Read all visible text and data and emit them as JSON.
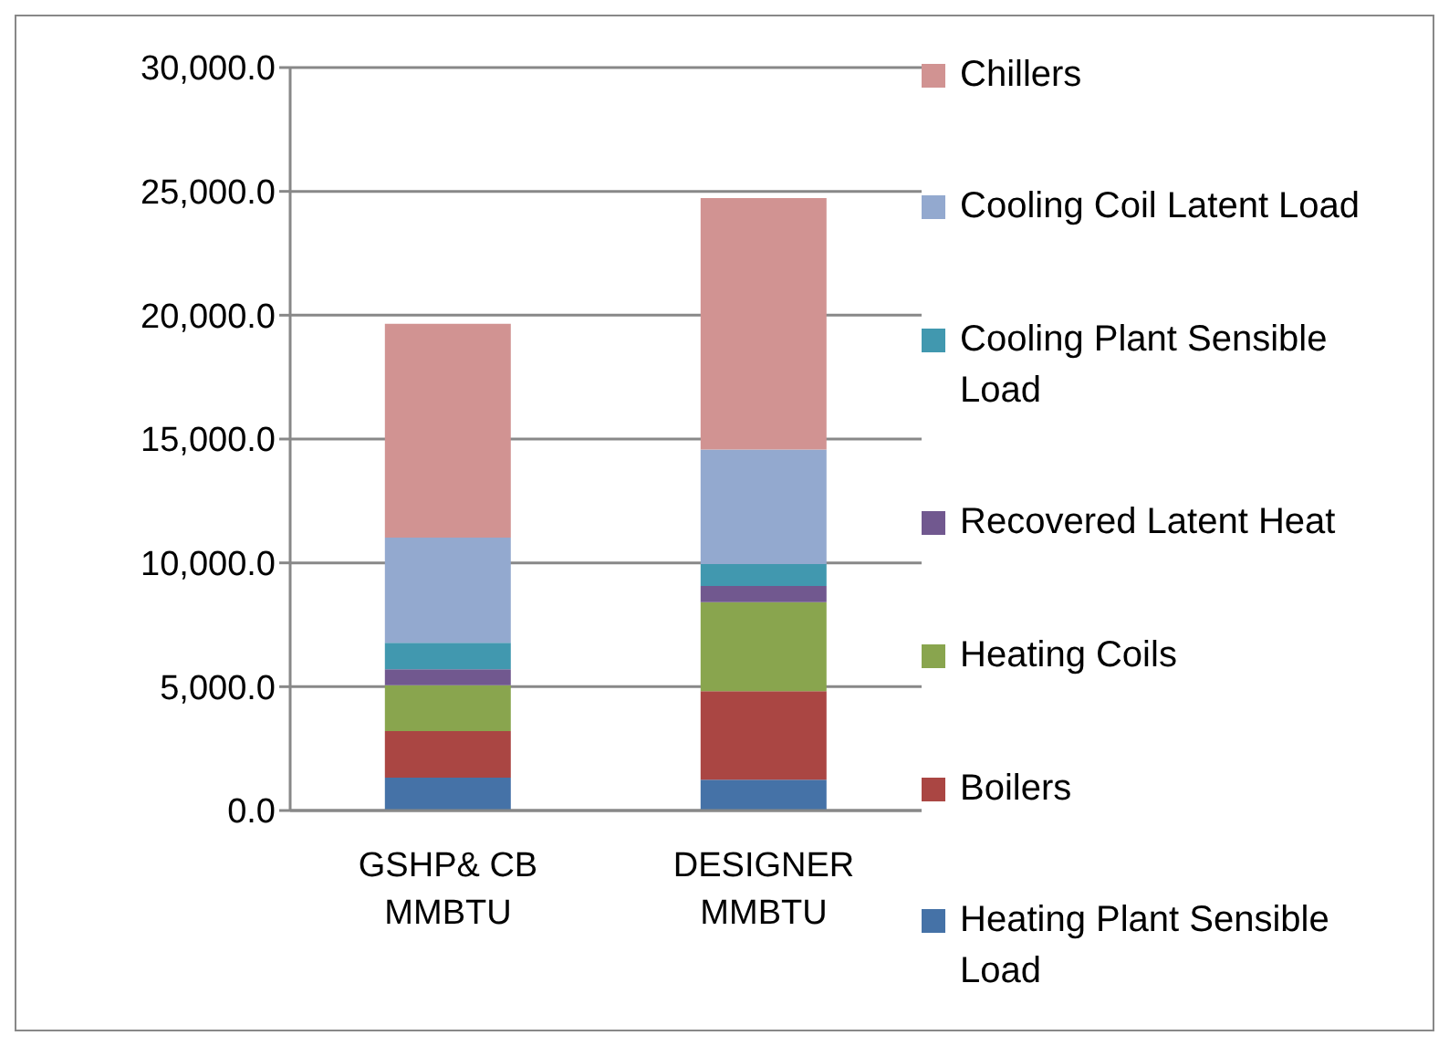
{
  "chart_data": {
    "type": "bar",
    "stacked": true,
    "categories": [
      "GSHP& CB MMBTU",
      "DESIGNER MMBTU"
    ],
    "series": [
      {
        "name": "Heating Plant Sensible Load",
        "color": "#4572a7",
        "values": [
          1330,
          1240
        ]
      },
      {
        "name": "Boilers",
        "color": "#aa4643",
        "values": [
          1880,
          3580
        ]
      },
      {
        "name": "Heating Coils",
        "color": "#89a54e",
        "values": [
          1850,
          3590
        ]
      },
      {
        "name": "Recovered Latent Heat",
        "color": "#71588f",
        "values": [
          640,
          660
        ]
      },
      {
        "name": "Cooling Plant Sensible Load",
        "color": "#4198af",
        "values": [
          1070,
          880
        ]
      },
      {
        "name": "Cooling Coil Latent Load",
        "color": "#93a9cf",
        "values": [
          4250,
          4630
        ]
      },
      {
        "name": "Chillers",
        "color": "#d19392",
        "values": [
          8630,
          10150
        ]
      }
    ],
    "ylim": [
      0,
      30000
    ],
    "yticks": [
      {
        "value": 0,
        "label": "0.0"
      },
      {
        "value": 5000,
        "label": "5,000.0"
      },
      {
        "value": 10000,
        "label": "10,000.0"
      },
      {
        "value": 15000,
        "label": "15,000.0"
      },
      {
        "value": 20000,
        "label": "20,000.0"
      },
      {
        "value": 25000,
        "label": "25,000.0"
      },
      {
        "value": 30000,
        "label": "30,000.0"
      }
    ],
    "grid": "y",
    "legend": "right"
  }
}
